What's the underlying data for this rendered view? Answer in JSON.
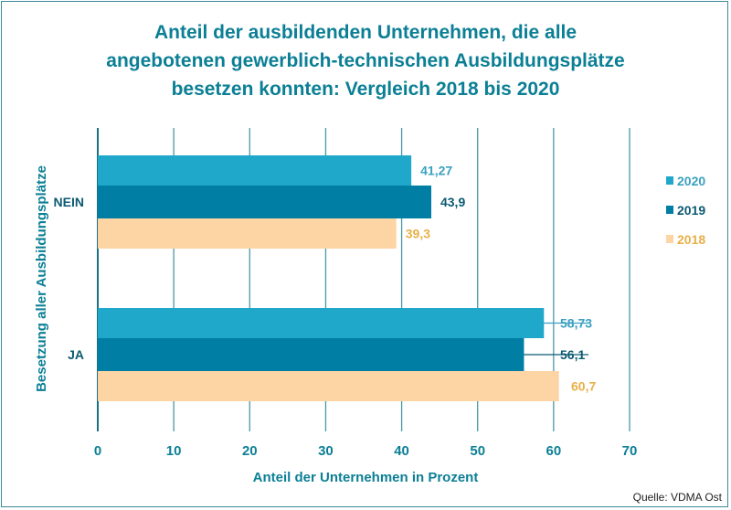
{
  "chart_data": {
    "type": "bar",
    "orientation": "horizontal",
    "title": [
      "Anteil der ausbildenden Unternehmen, die alle",
      "angebotenen gewerblich-technischen Ausbildungsplätze",
      "besetzen konnten: Vergleich 2018 bis 2020"
    ],
    "xlabel": "Anteil der Unternehmen in Prozent",
    "ylabel": "Besetzung aller Ausbildungsplätze",
    "categories": [
      "NEIN",
      "JA"
    ],
    "xlim": [
      0,
      70
    ],
    "xticks": [
      "0",
      "10",
      "20",
      "30",
      "40",
      "50",
      "60",
      "70"
    ],
    "grid": "vertical",
    "legend_position": "right",
    "series": [
      {
        "name": "2020",
        "values": [
          41.27,
          58.73
        ],
        "labels": [
          "41,27",
          "58,73"
        ],
        "color": "#1fa8c9",
        "label_color": "#3aa0c0"
      },
      {
        "name": "2019",
        "values": [
          43.9,
          56.1
        ],
        "labels": [
          "43,9",
          "56,1"
        ],
        "color": "#007ea3",
        "label_color": "#0b5a73"
      },
      {
        "name": "2018",
        "values": [
          39.3,
          60.7
        ],
        "labels": [
          "39,3",
          "60,7"
        ],
        "color": "#fdd5a5",
        "label_color": "#e8b048"
      }
    ],
    "source": "Quelle: VDMA Ost",
    "title_color": "#0b7f95"
  }
}
